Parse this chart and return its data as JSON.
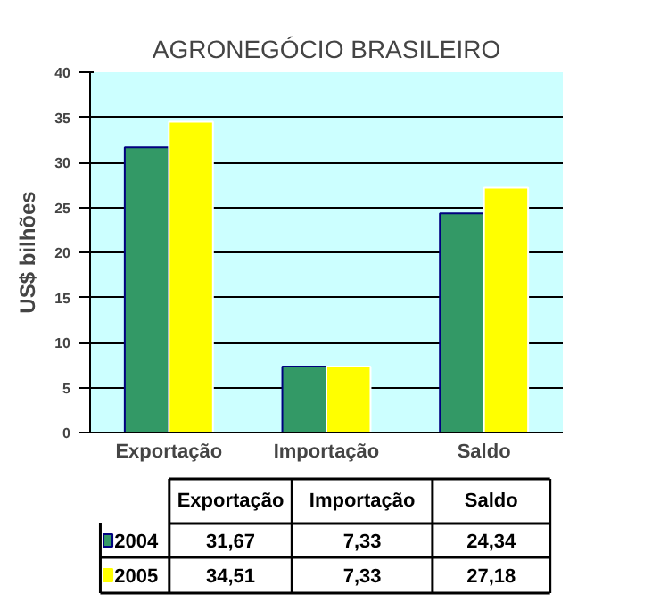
{
  "chart_data": {
    "type": "bar",
    "title": "AGRONEGÓCIO BRASILEIRO",
    "ylabel": "US$ bilhões",
    "categories": [
      "Exportação",
      "Importação",
      "Saldo"
    ],
    "series": [
      {
        "name": "2004",
        "color": "#339966",
        "values": [
          31.67,
          7.33,
          24.34
        ],
        "value_labels": [
          "31,67",
          "7,33",
          "24,34"
        ]
      },
      {
        "name": "2005",
        "color": "#ffff00",
        "values": [
          34.51,
          7.33,
          27.18
        ],
        "value_labels": [
          "34,51",
          "7,33",
          "27,18"
        ]
      }
    ],
    "ylim": [
      0,
      40
    ],
    "yticks": [
      0,
      5,
      10,
      15,
      20,
      25,
      30,
      35,
      40
    ],
    "grid": "y",
    "legend": "bottom"
  }
}
